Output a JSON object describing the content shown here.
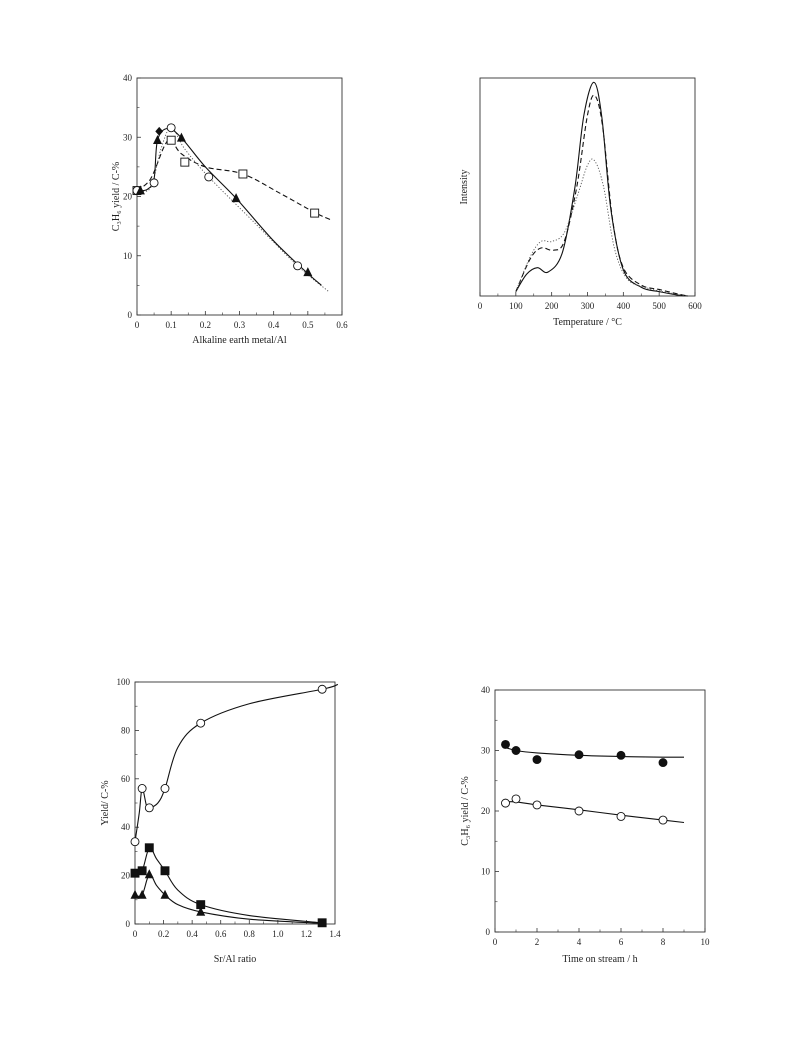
{
  "chart_data": [
    {
      "id": "c1",
      "type": "line",
      "xlabel": "Alkaline earth metal/Al",
      "ylabel": "C₃H₆ yield / C-%",
      "xlim": [
        0,
        0.6
      ],
      "ylim": [
        0,
        40
      ],
      "xticks": [
        0,
        0.1,
        0.2,
        0.3,
        0.4,
        0.5,
        0.6
      ],
      "xtick_labels": [
        "0",
        "0.1",
        "0.2",
        "0.3",
        "0.4",
        "0.5",
        "0.6"
      ],
      "yticks": [
        0,
        10,
        20,
        30,
        40
      ],
      "ytick_labels": [
        "0",
        "10",
        "20",
        "30",
        "40"
      ],
      "series": [
        {
          "marker": "square-open",
          "line": "dashed",
          "points": [
            [
              0,
              21
            ],
            [
              0.1,
              29.5
            ],
            [
              0.14,
              25.8
            ],
            [
              0.31,
              23.8
            ],
            [
              0.52,
              17.2
            ]
          ],
          "curve": [
            [
              0.0,
              21
            ],
            [
              0.04,
              23
            ],
            [
              0.08,
              28.5
            ],
            [
              0.1,
              29.5
            ],
            [
              0.13,
              27.2
            ],
            [
              0.2,
              25
            ],
            [
              0.31,
              23.8
            ],
            [
              0.42,
              20.5
            ],
            [
              0.52,
              17.3
            ],
            [
              0.57,
              16
            ]
          ]
        },
        {
          "marker": "circle-open",
          "line": "dotted",
          "points": [
            [
              0,
              21
            ],
            [
              0.05,
              22.3
            ],
            [
              0.1,
              31.6
            ],
            [
              0.21,
              23.3
            ],
            [
              0.47,
              8.3
            ]
          ],
          "curve": [
            [
              0.0,
              21
            ],
            [
              0.04,
              21.5
            ],
            [
              0.07,
              28
            ],
            [
              0.1,
              31.6
            ],
            [
              0.14,
              28
            ],
            [
              0.21,
              23.3
            ],
            [
              0.34,
              15.8
            ],
            [
              0.47,
              8.3
            ],
            [
              0.56,
              4
            ]
          ]
        },
        {
          "marker": "triangle-filled",
          "line": "solid",
          "points": [
            [
              0.01,
              21
            ],
            [
              0.06,
              29.5
            ],
            [
              0.13,
              29.9
            ],
            [
              0.29,
              19.7
            ],
            [
              0.5,
              7.2
            ]
          ],
          "curve": [
            [
              0.0,
              21
            ],
            [
              0.03,
              21.2
            ],
            [
              0.05,
              23
            ],
            [
              0.06,
              29.5
            ],
            [
              0.09,
              31.5
            ],
            [
              0.13,
              29.9
            ],
            [
              0.2,
              25
            ],
            [
              0.29,
              19.7
            ],
            [
              0.4,
              12.5
            ],
            [
              0.5,
              7
            ],
            [
              0.54,
              5
            ]
          ]
        },
        {
          "marker": "diamond-filled",
          "line": "none",
          "points": [
            [
              0.065,
              31
            ]
          ]
        }
      ]
    },
    {
      "id": "c2",
      "type": "line",
      "xlabel": "Temperature / °C",
      "ylabel": "Intensity",
      "xlim": [
        0,
        600
      ],
      "ylim": [
        0,
        100
      ],
      "xticks": [
        0,
        100,
        200,
        300,
        400,
        500,
        600
      ],
      "xtick_labels": [
        "0",
        "100",
        "200",
        "300",
        "400",
        "500",
        "600"
      ],
      "yticks": [],
      "ytick_labels": [],
      "series": [
        {
          "line": "solid",
          "curve": [
            [
              100,
              2
            ],
            [
              130,
              10
            ],
            [
              160,
              13
            ],
            [
              190,
              11
            ],
            [
              230,
              20
            ],
            [
              265,
              50
            ],
            [
              290,
              83
            ],
            [
              318,
              98
            ],
            [
              340,
              82
            ],
            [
              365,
              40
            ],
            [
              400,
              12
            ],
            [
              450,
              4
            ],
            [
              500,
              2
            ],
            [
              550,
              0.5
            ],
            [
              580,
              0
            ]
          ]
        },
        {
          "line": "dashed",
          "curve": [
            [
              100,
              2
            ],
            [
              140,
              17
            ],
            [
              170,
              22
            ],
            [
              205,
              21
            ],
            [
              235,
              25
            ],
            [
              270,
              50
            ],
            [
              300,
              83
            ],
            [
              320,
              92
            ],
            [
              342,
              78
            ],
            [
              370,
              35
            ],
            [
              400,
              13
            ],
            [
              450,
              5
            ],
            [
              500,
              3
            ],
            [
              550,
              1
            ],
            [
              580,
              0
            ]
          ]
        },
        {
          "line": "dotted",
          "curve": [
            [
              100,
              2
            ],
            [
              140,
              18
            ],
            [
              170,
              25
            ],
            [
              200,
              25
            ],
            [
              235,
              29
            ],
            [
              270,
              45
            ],
            [
              300,
              60
            ],
            [
              320,
              62
            ],
            [
              345,
              50
            ],
            [
              375,
              22
            ],
            [
              410,
              8
            ],
            [
              460,
              4
            ],
            [
              510,
              2
            ],
            [
              560,
              0.5
            ],
            [
              580,
              0
            ]
          ]
        }
      ]
    },
    {
      "id": "c3",
      "type": "line",
      "xlabel": "Sr/Al ratio",
      "ylabel": "Yield/ C-%",
      "xlim": [
        0,
        1.4
      ],
      "ylim": [
        0,
        100
      ],
      "xticks": [
        0,
        0.2,
        0.4,
        0.6,
        0.8,
        1.0,
        1.2,
        1.4
      ],
      "xtick_labels": [
        "0",
        "0.2",
        "0.4",
        "0.6",
        "0.8",
        "1.0",
        "1.2",
        "1.4"
      ],
      "yticks": [
        0,
        20,
        40,
        60,
        80,
        100
      ],
      "ytick_labels": [
        "0",
        "20",
        "40",
        "60",
        "80",
        "100"
      ],
      "series": [
        {
          "marker": "circle-open",
          "line": "solid",
          "points": [
            [
              0,
              34
            ],
            [
              0.05,
              56
            ],
            [
              0.1,
              48
            ],
            [
              0.21,
              56
            ],
            [
              0.46,
              83
            ],
            [
              1.31,
              97
            ]
          ],
          "curve": [
            [
              0.0,
              34
            ],
            [
              0.03,
              46
            ],
            [
              0.05,
              56
            ],
            [
              0.08,
              49
            ],
            [
              0.1,
              48
            ],
            [
              0.16,
              50
            ],
            [
              0.21,
              56
            ],
            [
              0.3,
              73
            ],
            [
              0.46,
              83
            ],
            [
              0.8,
              91
            ],
            [
              1.31,
              97
            ],
            [
              1.42,
              99
            ]
          ]
        },
        {
          "marker": "square-filled",
          "line": "solid",
          "points": [
            [
              0,
              21
            ],
            [
              0.05,
              22
            ],
            [
              0.1,
              31.5
            ],
            [
              0.21,
              22
            ],
            [
              0.46,
              8
            ],
            [
              1.31,
              0.5
            ]
          ],
          "curve": [
            [
              0.0,
              21
            ],
            [
              0.05,
              22
            ],
            [
              0.1,
              31.5
            ],
            [
              0.15,
              27
            ],
            [
              0.21,
              22
            ],
            [
              0.3,
              14
            ],
            [
              0.46,
              8
            ],
            [
              0.8,
              3.5
            ],
            [
              1.31,
              0.5
            ]
          ]
        },
        {
          "marker": "triangle-filled",
          "line": "solid",
          "points": [
            [
              0,
              12
            ],
            [
              0.05,
              12
            ],
            [
              0.1,
              20.5
            ],
            [
              0.21,
              12
            ],
            [
              0.46,
              5
            ]
          ],
          "curve": [
            [
              0.0,
              12
            ],
            [
              0.05,
              12
            ],
            [
              0.1,
              20.5
            ],
            [
              0.15,
              16
            ],
            [
              0.21,
              12
            ],
            [
              0.3,
              8
            ],
            [
              0.46,
              5
            ],
            [
              0.8,
              2
            ],
            [
              1.3,
              0.3
            ]
          ]
        }
      ]
    },
    {
      "id": "c4",
      "type": "line",
      "xlabel": "Time on stream / h",
      "ylabel": "C₃H₆ yield / C-%",
      "xlim": [
        0,
        10
      ],
      "ylim": [
        0,
        40
      ],
      "xticks": [
        0,
        2,
        4,
        6,
        8,
        10
      ],
      "xtick_labels": [
        "0",
        "2",
        "4",
        "6",
        "8",
        "10"
      ],
      "yticks": [
        0,
        10,
        20,
        30,
        40
      ],
      "ytick_labels": [
        "0",
        "10",
        "20",
        "30",
        "40"
      ],
      "series": [
        {
          "marker": "circle-filled",
          "line": "solid",
          "points": [
            [
              0.5,
              31
            ],
            [
              1,
              30
            ],
            [
              2,
              28.5
            ],
            [
              4,
              29.3
            ],
            [
              6,
              29.2
            ],
            [
              8,
              28
            ]
          ],
          "curve": [
            [
              0.5,
              30.5
            ],
            [
              1,
              30
            ],
            [
              2,
              29.6
            ],
            [
              4,
              29.2
            ],
            [
              6,
              29.0
            ],
            [
              8,
              28.9
            ],
            [
              9,
              28.9
            ]
          ]
        },
        {
          "marker": "circle-open",
          "line": "solid",
          "points": [
            [
              0.5,
              21.3
            ],
            [
              1,
              22
            ],
            [
              2,
              21
            ],
            [
              4,
              20
            ],
            [
              6,
              19.1
            ],
            [
              8,
              18.5
            ]
          ],
          "curve": [
            [
              0.5,
              21.5
            ],
            [
              1,
              21.5
            ],
            [
              2,
              21
            ],
            [
              4,
              20.2
            ],
            [
              6,
              19.3
            ],
            [
              8,
              18.5
            ],
            [
              9,
              18.1
            ]
          ]
        }
      ]
    }
  ]
}
